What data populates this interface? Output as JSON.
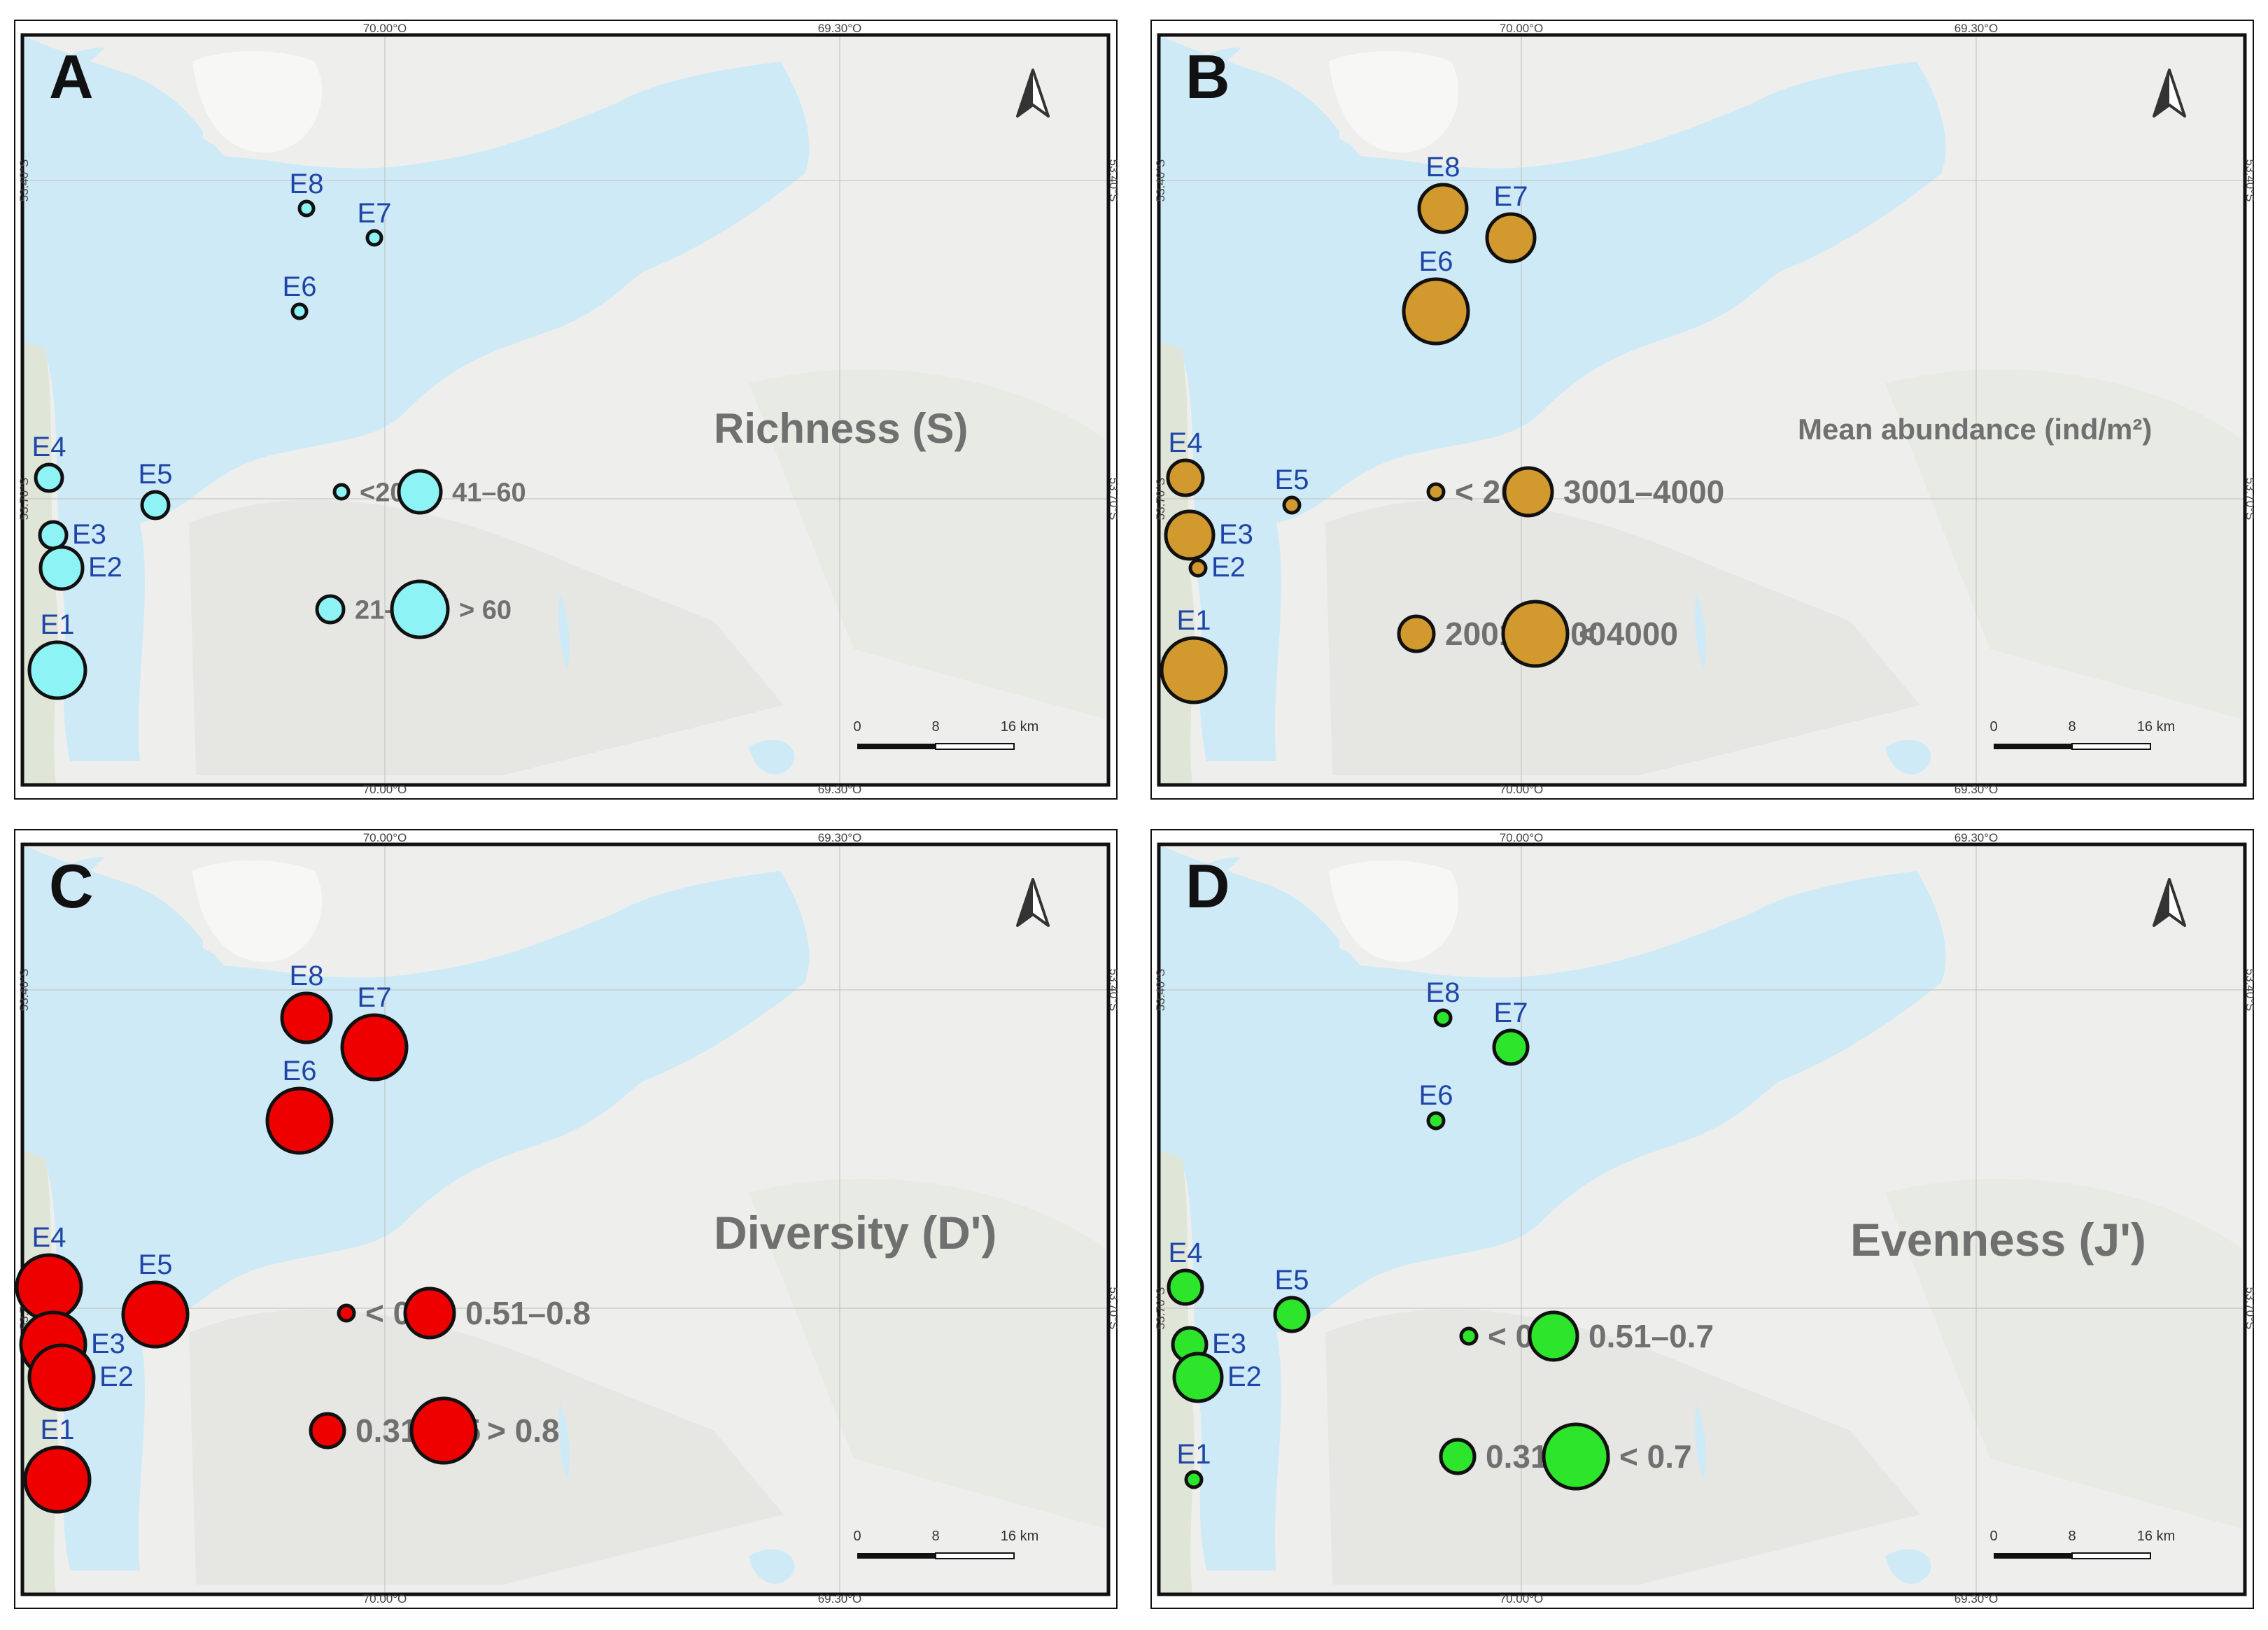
{
  "graticule": {
    "lon_left": "70.00°O",
    "lon_right": "69.30°O",
    "lat_top": "53.40°S",
    "lat_bottom": "53.70°S"
  },
  "scale_bar": {
    "t0": "0",
    "t1": "8",
    "t2": "16 km"
  },
  "colors": {
    "water": "#cfeaf7",
    "land": "#eeefec",
    "richness": "#8ef3f5",
    "abundance": "#d1992e",
    "diversity": "#ee0000",
    "evenness": "#2de52b",
    "station_text": "#1f46a6",
    "legend_text": "#707070"
  },
  "panels": [
    {
      "letter": "A",
      "title": "Richness (S)",
      "legend": [
        {
          "label": "<20",
          "size_class": 1
        },
        {
          "label": "41–60",
          "size_class": 3
        },
        {
          "label": "21–40",
          "size_class": 2
        },
        {
          "label": "> 60",
          "size_class": 4
        }
      ],
      "stations": [
        {
          "name": "E8",
          "size_class": 1
        },
        {
          "name": "E7",
          "size_class": 1
        },
        {
          "name": "E6",
          "size_class": 1
        },
        {
          "name": "E4",
          "size_class": 2
        },
        {
          "name": "E5",
          "size_class": 2
        },
        {
          "name": "E3",
          "size_class": 2
        },
        {
          "name": "E2",
          "size_class": 3
        },
        {
          "name": "E1",
          "size_class": 4
        }
      ]
    },
    {
      "letter": "B",
      "title": "Mean abundance (ind/m²)",
      "legend": [
        {
          "label": "< 2000",
          "size_class": 1
        },
        {
          "label": "3001–4000",
          "size_class": 3
        },
        {
          "label": "2001–3000",
          "size_class": 2
        },
        {
          "label": "< 4000",
          "size_class": 4
        }
      ],
      "stations": [
        {
          "name": "E8",
          "size_class": 3
        },
        {
          "name": "E7",
          "size_class": 3
        },
        {
          "name": "E6",
          "size_class": 4
        },
        {
          "name": "E4",
          "size_class": 2
        },
        {
          "name": "E5",
          "size_class": 1
        },
        {
          "name": "E3",
          "size_class": 3
        },
        {
          "name": "E2",
          "size_class": 1
        },
        {
          "name": "E1",
          "size_class": 4
        }
      ]
    },
    {
      "letter": "C",
      "title": "Diversity (D')",
      "legend": [
        {
          "label": "< 0.3",
          "size_class": 1
        },
        {
          "label": "0.51–0.8",
          "size_class": 3
        },
        {
          "label": "0.31–0.5",
          "size_class": 2
        },
        {
          "label": "> 0.8",
          "size_class": 4
        }
      ],
      "stations": [
        {
          "name": "E8",
          "size_class": 3
        },
        {
          "name": "E7",
          "size_class": 4
        },
        {
          "name": "E6",
          "size_class": 4
        },
        {
          "name": "E4",
          "size_class": 4
        },
        {
          "name": "E5",
          "size_class": 4
        },
        {
          "name": "E3",
          "size_class": 4
        },
        {
          "name": "E2",
          "size_class": 4
        },
        {
          "name": "E1",
          "size_class": 4
        }
      ]
    },
    {
      "letter": "D",
      "title": "Evenness (J')",
      "legend": [
        {
          "label": "< 0.3",
          "size_class": 1
        },
        {
          "label": "0.51–0.7",
          "size_class": 3
        },
        {
          "label": "0.31–0.5",
          "size_class": 2
        },
        {
          "label": "< 0.7",
          "size_class": 4
        }
      ],
      "stations": [
        {
          "name": "E8",
          "size_class": 1
        },
        {
          "name": "E7",
          "size_class": 2
        },
        {
          "name": "E6",
          "size_class": 1
        },
        {
          "name": "E4",
          "size_class": 2
        },
        {
          "name": "E5",
          "size_class": 2
        },
        {
          "name": "E3",
          "size_class": 2
        },
        {
          "name": "E2",
          "size_class": 3
        },
        {
          "name": "E1",
          "size_class": 1
        }
      ]
    }
  ]
}
